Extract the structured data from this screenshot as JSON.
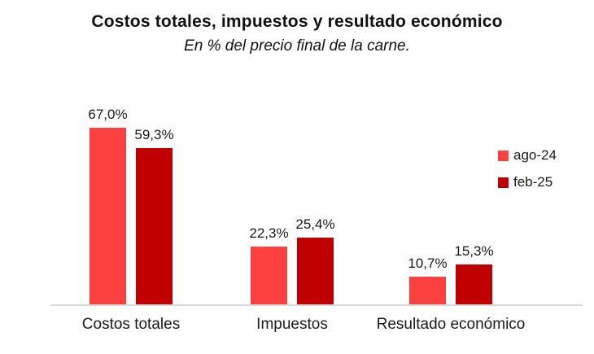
{
  "title": "Costos totales, impuestos y resultado económico",
  "subtitle": "En % del precio final de la carne.",
  "chart_data": {
    "type": "bar",
    "categories": [
      "Costos totales",
      "Impuestos",
      "Resultado económico"
    ],
    "series": [
      {
        "name": "ago-24",
        "color": "#FC4040",
        "values": [
          67.0,
          22.3,
          10.7
        ],
        "value_labels": [
          "67,0%",
          "22,3%",
          "10,7%"
        ]
      },
      {
        "name": "feb-25",
        "color": "#C00000",
        "values": [
          59.3,
          25.4,
          15.3
        ],
        "value_labels": [
          "59,3%",
          "25,4%",
          "15,3%"
        ]
      }
    ],
    "xlabel": "",
    "ylabel": "",
    "ylim": [
      0,
      70
    ],
    "grid": false,
    "y_axis_visible": false,
    "value_labels_shown": true,
    "legend_position": "right",
    "axis_line_color": "#D9D9D9",
    "text_color": "#1A1A1A",
    "background_color": "#FFFFFF"
  }
}
